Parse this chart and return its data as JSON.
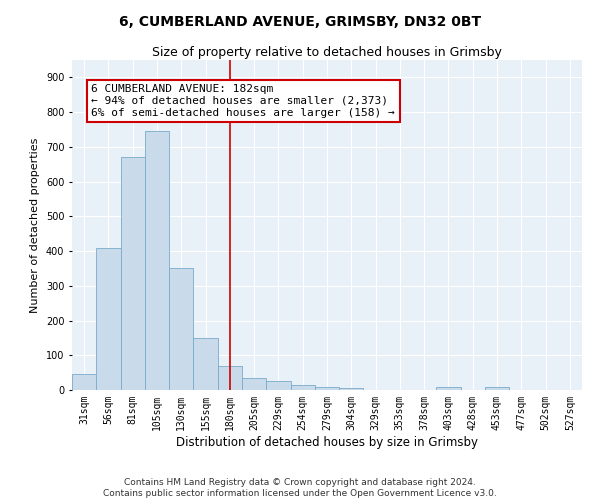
{
  "title1": "6, CUMBERLAND AVENUE, GRIMSBY, DN32 0BT",
  "title2": "Size of property relative to detached houses in Grimsby",
  "xlabel": "Distribution of detached houses by size in Grimsby",
  "ylabel": "Number of detached properties",
  "categories": [
    "31sqm",
    "56sqm",
    "81sqm",
    "105sqm",
    "130sqm",
    "155sqm",
    "180sqm",
    "205sqm",
    "229sqm",
    "254sqm",
    "279sqm",
    "304sqm",
    "329sqm",
    "353sqm",
    "378sqm",
    "403sqm",
    "428sqm",
    "453sqm",
    "477sqm",
    "502sqm",
    "527sqm"
  ],
  "values": [
    45,
    410,
    670,
    745,
    350,
    150,
    70,
    35,
    25,
    15,
    10,
    5,
    0,
    0,
    0,
    8,
    0,
    8,
    0,
    0,
    0
  ],
  "bar_color": "#c9daea",
  "bar_edge_color": "#7aabcc",
  "vline_x": 6,
  "vline_color": "#cc0000",
  "annotation_box_text": "6 CUMBERLAND AVENUE: 182sqm\n← 94% of detached houses are smaller (2,373)\n6% of semi-detached houses are larger (158) →",
  "annotation_box_color": "#cc0000",
  "ylim": [
    0,
    950
  ],
  "yticks": [
    0,
    100,
    200,
    300,
    400,
    500,
    600,
    700,
    800,
    900
  ],
  "footer_text": "Contains HM Land Registry data © Crown copyright and database right 2024.\nContains public sector information licensed under the Open Government Licence v3.0.",
  "bg_color": "#e8f0f8",
  "grid_color": "#ffffff",
  "title1_fontsize": 10,
  "title2_fontsize": 9,
  "xlabel_fontsize": 8.5,
  "ylabel_fontsize": 8,
  "tick_fontsize": 7,
  "annotation_fontsize": 8,
  "footer_fontsize": 6.5
}
